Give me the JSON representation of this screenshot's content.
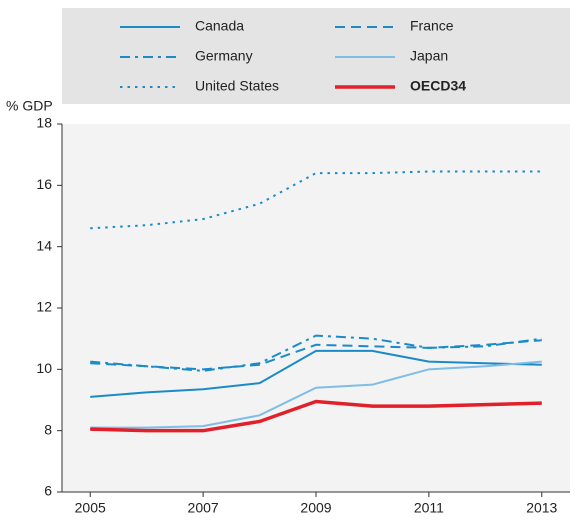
{
  "chart_data": {
    "type": "line",
    "y_axis_label": "% GDP",
    "x": [
      2005,
      2006,
      2007,
      2008,
      2009,
      2010,
      2011,
      2012,
      2013
    ],
    "xlim": [
      2004.5,
      2013.5
    ],
    "xticks": [
      2005,
      2007,
      2009,
      2011,
      2013
    ],
    "ylim": [
      6,
      18
    ],
    "yticks": [
      6,
      8,
      10,
      12,
      14,
      16,
      18
    ],
    "grid": false,
    "legend": "top",
    "series": [
      {
        "name": "Canada",
        "color": "#1b8bc8",
        "dash": "solid",
        "line_width": 2,
        "values": [
          9.1,
          9.25,
          9.35,
          9.55,
          10.6,
          10.6,
          10.25,
          10.2,
          10.15
        ]
      },
      {
        "name": "France",
        "color": "#1b8bc8",
        "dash": "dashed",
        "line_width": 2,
        "values": [
          10.2,
          10.1,
          10.0,
          10.15,
          10.8,
          10.75,
          10.7,
          10.8,
          10.95
        ]
      },
      {
        "name": "Germany",
        "color": "#1b8bc8",
        "dash": "dashdot",
        "line_width": 2,
        "values": [
          10.25,
          10.1,
          9.95,
          10.2,
          11.1,
          11.0,
          10.7,
          10.75,
          11.0
        ]
      },
      {
        "name": "Japan",
        "color": "#7fbde6",
        "dash": "solid",
        "line_width": 2,
        "values": [
          8.1,
          8.1,
          8.15,
          8.5,
          9.4,
          9.5,
          10.0,
          10.1,
          10.25
        ]
      },
      {
        "name": "United States",
        "color": "#1b8bc8",
        "dash": "dotted",
        "line_width": 2,
        "values": [
          14.6,
          14.7,
          14.9,
          15.4,
          16.4,
          16.4,
          16.45,
          16.45,
          16.45
        ]
      },
      {
        "name": "OECD34",
        "color": "#e0202a",
        "dash": "solid",
        "line_width": 3.5,
        "values": [
          8.05,
          8.0,
          8.0,
          8.3,
          8.95,
          8.8,
          8.8,
          8.85,
          8.9
        ]
      }
    ]
  }
}
